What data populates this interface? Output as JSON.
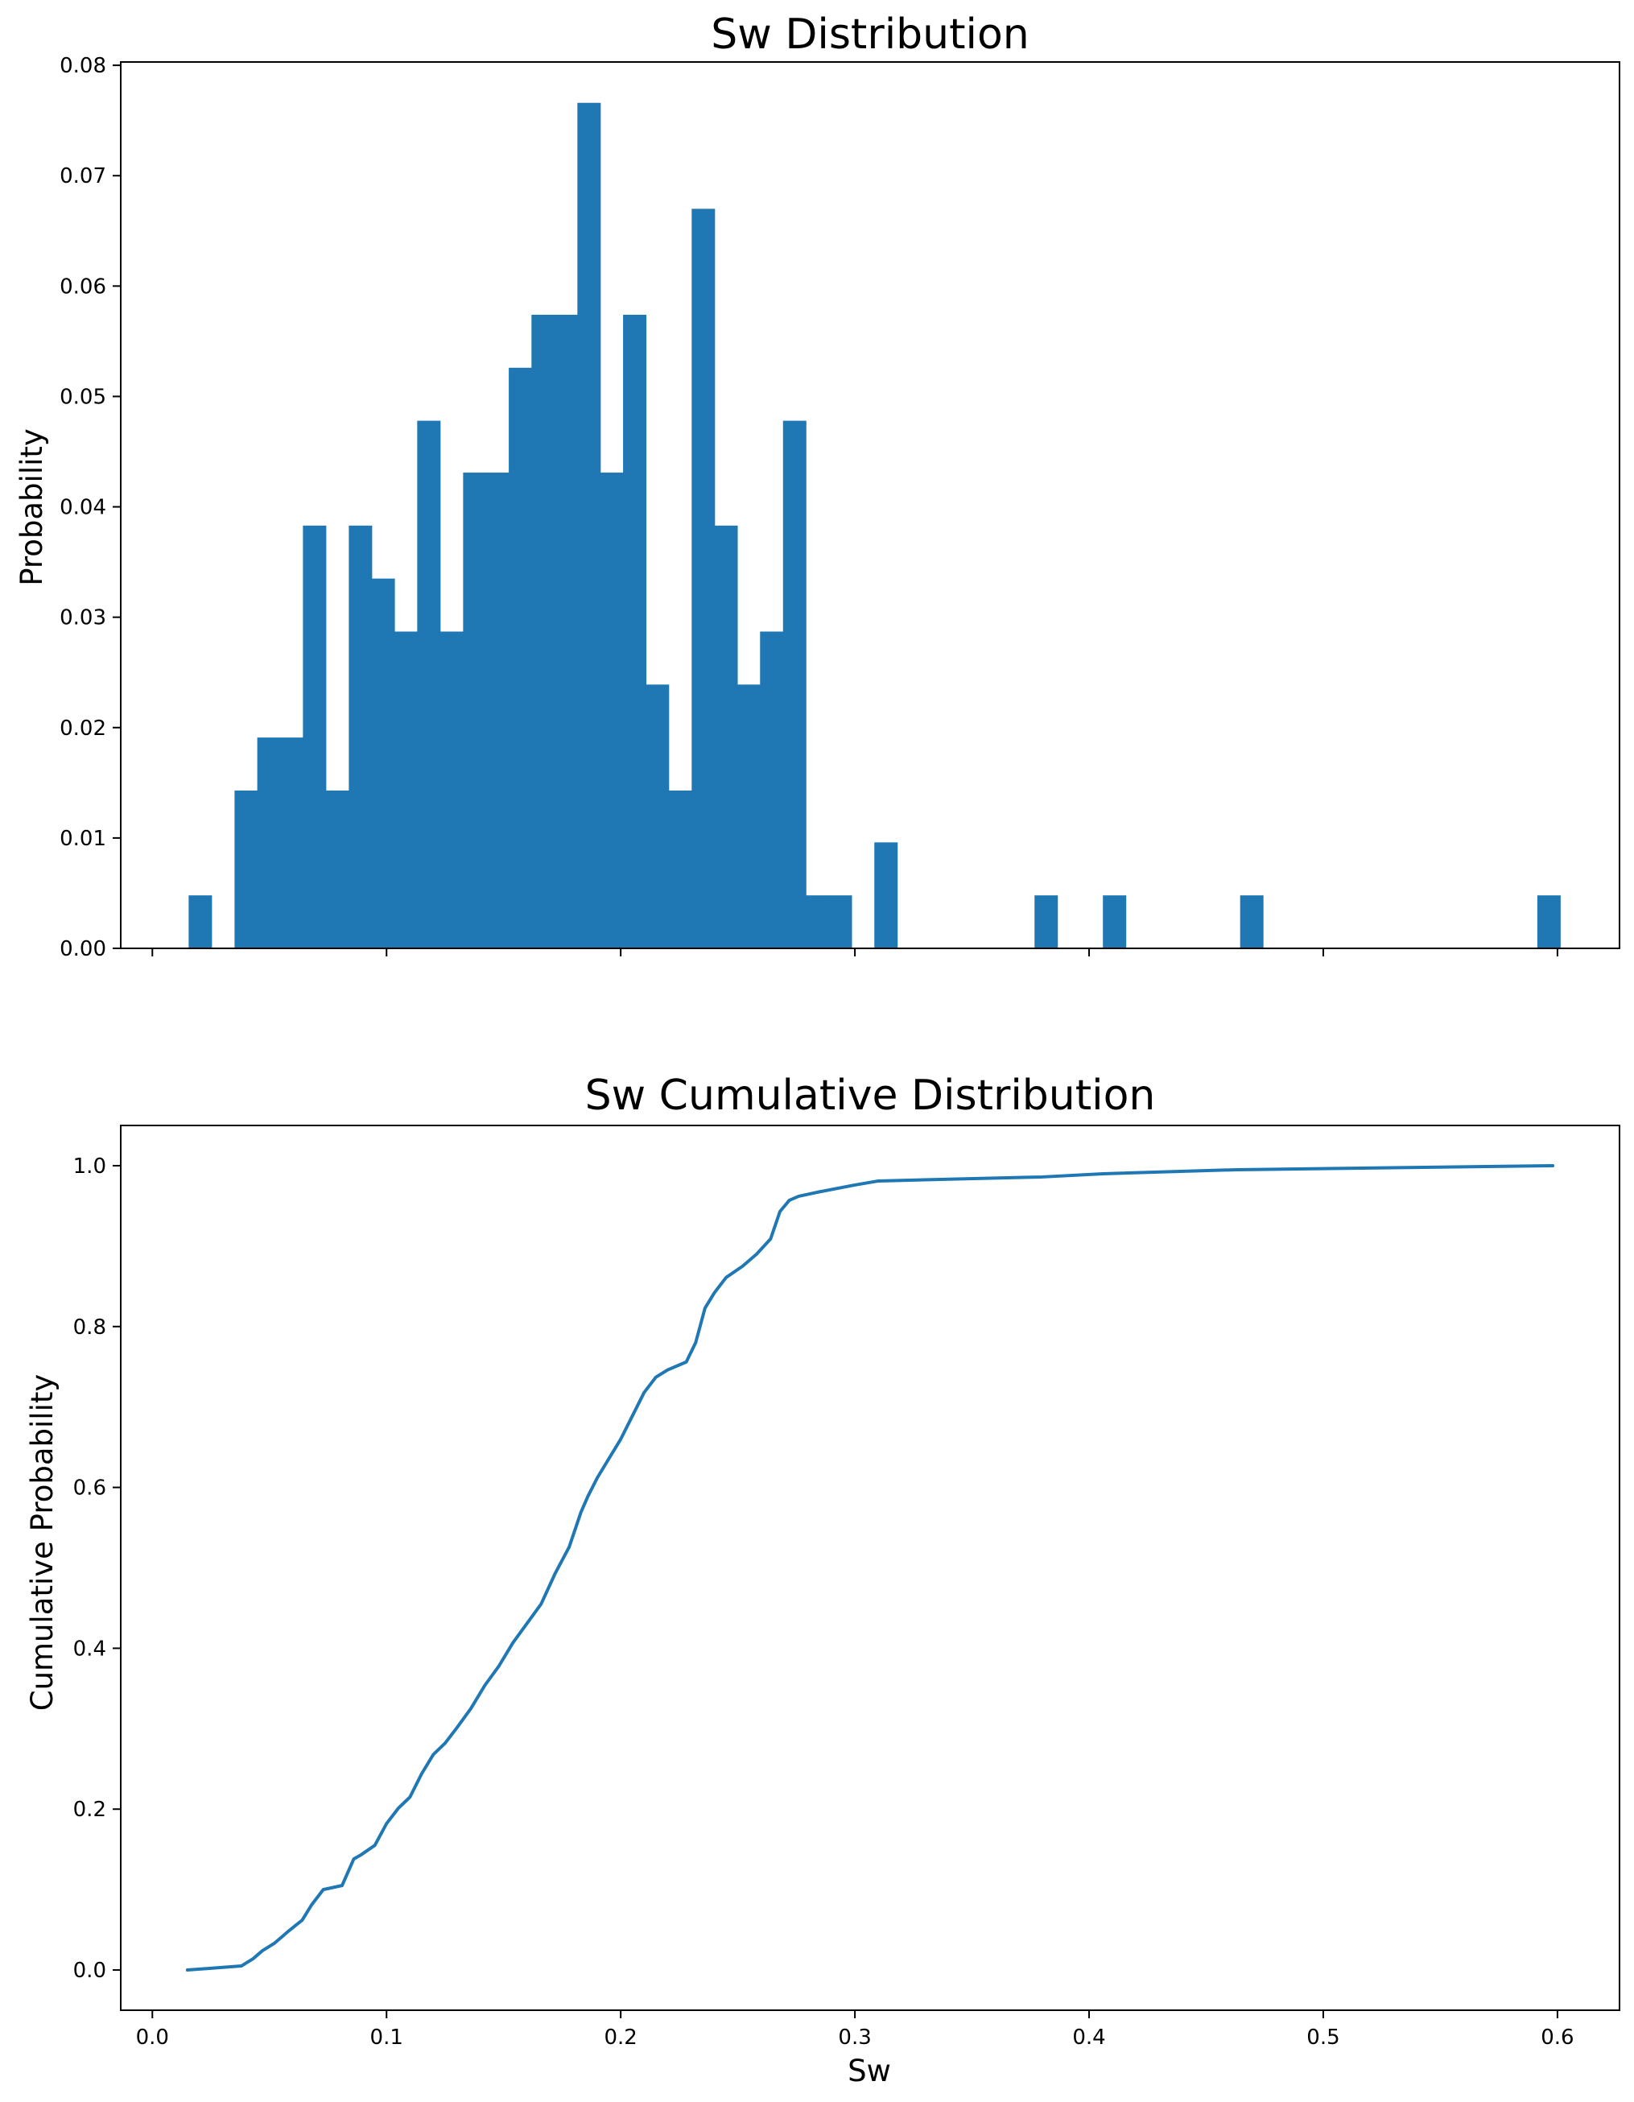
{
  "chart_data": [
    {
      "type": "bar",
      "title": "Sw Distribution",
      "xlabel": "",
      "ylabel": "Probability",
      "xlim": [
        -0.0135,
        0.6265
      ],
      "ylim": [
        0,
        0.0803
      ],
      "bin_width": 0.00976,
      "bin_start": 0.0155,
      "bars": [
        {
          "x": 0.0155,
          "value": 0.0048
        },
        {
          "x": 0.0351,
          "value": 0.0143
        },
        {
          "x": 0.0448,
          "value": 0.0191
        },
        {
          "x": 0.0546,
          "value": 0.0191
        },
        {
          "x": 0.0643,
          "value": 0.0383
        },
        {
          "x": 0.0741,
          "value": 0.0143
        },
        {
          "x": 0.0839,
          "value": 0.0383
        },
        {
          "x": 0.0936,
          "value": 0.0335
        },
        {
          "x": 0.1034,
          "value": 0.0287
        },
        {
          "x": 0.1131,
          "value": 0.0478
        },
        {
          "x": 0.1229,
          "value": 0.0287
        },
        {
          "x": 0.1327,
          "value": 0.0431
        },
        {
          "x": 0.1424,
          "value": 0.0431
        },
        {
          "x": 0.1522,
          "value": 0.0526
        },
        {
          "x": 0.1619,
          "value": 0.0574
        },
        {
          "x": 0.1717,
          "value": 0.0574
        },
        {
          "x": 0.1815,
          "value": 0.0766
        },
        {
          "x": 0.1912,
          "value": 0.0431
        },
        {
          "x": 0.201,
          "value": 0.0574
        },
        {
          "x": 0.2107,
          "value": 0.0239
        },
        {
          "x": 0.2205,
          "value": 0.0143
        },
        {
          "x": 0.2303,
          "value": 0.067
        },
        {
          "x": 0.24,
          "value": 0.0383
        },
        {
          "x": 0.2498,
          "value": 0.0239
        },
        {
          "x": 0.2595,
          "value": 0.0287
        },
        {
          "x": 0.2693,
          "value": 0.0478
        },
        {
          "x": 0.2791,
          "value": 0.0048
        },
        {
          "x": 0.2888,
          "value": 0.0048
        },
        {
          "x": 0.3083,
          "value": 0.0096
        },
        {
          "x": 0.3767,
          "value": 0.0048
        },
        {
          "x": 0.4059,
          "value": 0.0048
        },
        {
          "x": 0.4645,
          "value": 0.0048
        },
        {
          "x": 0.5914,
          "value": 0.0048
        }
      ],
      "yticks": [
        "0.00",
        "0.01",
        "0.02",
        "0.03",
        "0.04",
        "0.05",
        "0.06",
        "0.07",
        "0.08"
      ],
      "xticks_values": [
        0.0,
        0.1,
        0.2,
        0.3,
        0.4,
        0.5,
        0.6
      ],
      "xticks_labels_shown": false,
      "grid": false,
      "colors": {
        "bar": "#1f77b4"
      }
    },
    {
      "type": "line",
      "title": "Sw Cumulative Distribution",
      "xlabel": "Sw",
      "ylabel": "Cumulative Probability",
      "xlim": [
        -0.0135,
        0.6265
      ],
      "ylim": [
        -0.05,
        1.05
      ],
      "series": [
        {
          "x": [
            0.015,
            0.038,
            0.043,
            0.047,
            0.052,
            0.058,
            0.064,
            0.068,
            0.073,
            0.081,
            0.086,
            0.089,
            0.095,
            0.1,
            0.105,
            0.11,
            0.115,
            0.12,
            0.125,
            0.13,
            0.136,
            0.142,
            0.148,
            0.154,
            0.16,
            0.166,
            0.172,
            0.178,
            0.183,
            0.186,
            0.19,
            0.195,
            0.2,
            0.205,
            0.21,
            0.215,
            0.22,
            0.228,
            0.232,
            0.236,
            0.24,
            0.245,
            0.252,
            0.258,
            0.264,
            0.268,
            0.272,
            0.276,
            0.284,
            0.3,
            0.31,
            0.38,
            0.406,
            0.463,
            0.598
          ],
          "y": [
            0.0,
            0.005,
            0.014,
            0.024,
            0.033,
            0.048,
            0.062,
            0.081,
            0.1,
            0.105,
            0.138,
            0.143,
            0.155,
            0.182,
            0.201,
            0.215,
            0.244,
            0.268,
            0.282,
            0.301,
            0.325,
            0.354,
            0.378,
            0.407,
            0.431,
            0.455,
            0.493,
            0.526,
            0.569,
            0.589,
            0.612,
            0.636,
            0.66,
            0.689,
            0.718,
            0.737,
            0.746,
            0.756,
            0.78,
            0.823,
            0.842,
            0.861,
            0.875,
            0.89,
            0.909,
            0.943,
            0.957,
            0.962,
            0.967,
            0.976,
            0.981,
            0.986,
            0.99,
            0.995,
            1.0
          ]
        }
      ],
      "yticks": [
        "0.0",
        "0.2",
        "0.4",
        "0.6",
        "0.8",
        "1.0"
      ],
      "xticks": [
        "0.0",
        "0.1",
        "0.2",
        "0.3",
        "0.4",
        "0.5",
        "0.6"
      ],
      "grid": false,
      "colors": {
        "line": "#1f77b4"
      }
    }
  ]
}
